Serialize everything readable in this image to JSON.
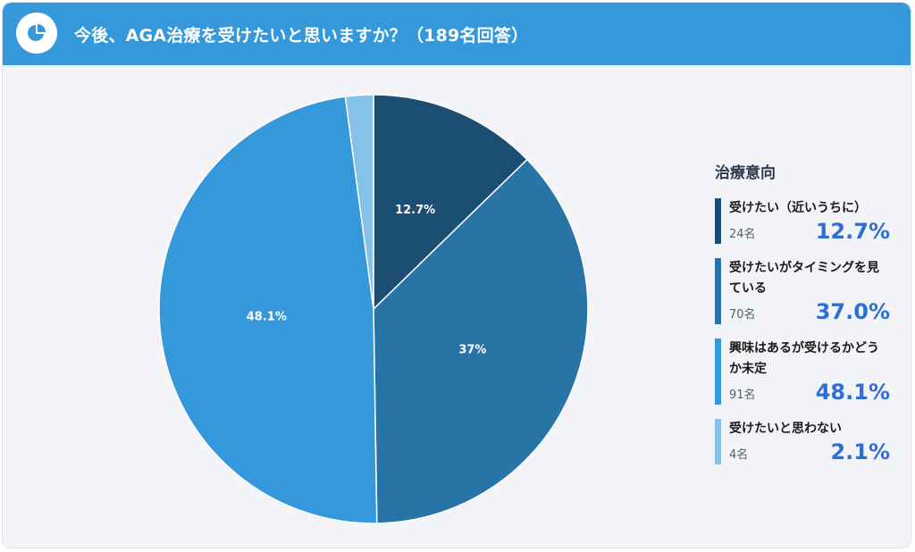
{
  "header": {
    "title": "今後、AGA治療を受けたいと思いますか？（189名回答）",
    "icon": "pie-chart-icon"
  },
  "legend": {
    "title": "治療意向"
  },
  "chart_data": {
    "type": "pie",
    "title": "今後、AGA治療を受けたいと思いますか？（189名回答）",
    "slices": [
      {
        "label": "受けたい（近いうちに）",
        "count": 24,
        "count_label": "24名",
        "percent": 12.7,
        "percent_label": "12.7%",
        "slice_label": "12.7%",
        "color": "#1c4e74"
      },
      {
        "label": "受けたいがタイミングを見ている",
        "count": 70,
        "count_label": "70名",
        "percent": 37.0,
        "percent_label": "37.0%",
        "slice_label": "37%",
        "color": "#2874a6"
      },
      {
        "label": "興味はあるが受けるかどうか未定",
        "count": 91,
        "count_label": "91名",
        "percent": 48.1,
        "percent_label": "48.1%",
        "slice_label": "48.1%",
        "color": "#3598db"
      },
      {
        "label": "受けたいと思わない",
        "count": 4,
        "count_label": "4名",
        "percent": 2.1,
        "percent_label": "2.1%",
        "slice_label": "",
        "color": "#85c1e9"
      }
    ],
    "legend_title": "治療意向",
    "legend_position": "right"
  }
}
